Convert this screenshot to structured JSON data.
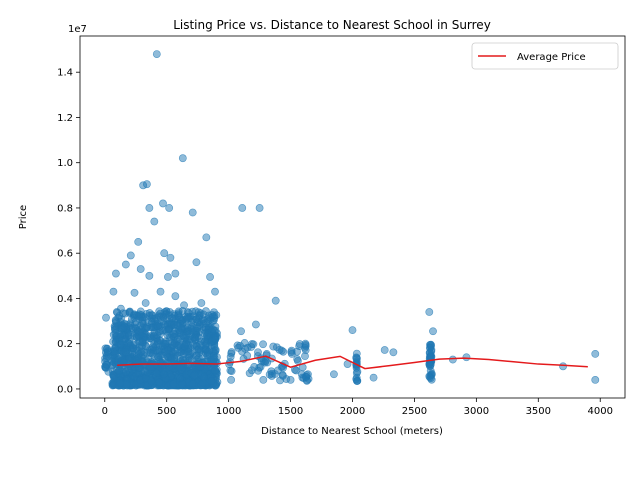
{
  "chart_data": {
    "type": "scatter",
    "title": "Listing Price vs. Distance to Nearest School in Surrey",
    "xlabel": "Distance to Nearest School (meters)",
    "ylabel": "Price",
    "y_offset_label": "1e7",
    "xlim": [
      -200,
      4200
    ],
    "ylim": [
      -400000,
      15600000
    ],
    "x_ticks": [
      0,
      500,
      1000,
      1500,
      2000,
      2500,
      3000,
      3500,
      4000
    ],
    "y_ticks": [
      0,
      2000000,
      4000000,
      6000000,
      8000000,
      10000000,
      12000000,
      14000000
    ],
    "x_tick_labels": [
      "0",
      "500",
      "1000",
      "1500",
      "2000",
      "2500",
      "3000",
      "3500",
      "4000"
    ],
    "y_tick_labels": [
      "0.0",
      "0.2",
      "0.4",
      "0.6",
      "0.8",
      "1.0",
      "1.2",
      "1.4"
    ],
    "legend": {
      "position": "upper right",
      "entries": [
        "Average Price"
      ]
    },
    "colors": {
      "scatter": "#1f77b4",
      "average_line": "#e41a1c"
    },
    "series": [
      {
        "type": "scatter",
        "points": [
          [
            420,
            14800000
          ],
          [
            630,
            10200000
          ],
          [
            310,
            9000000
          ],
          [
            340,
            9050000
          ],
          [
            470,
            8200000
          ],
          [
            360,
            8000000
          ],
          [
            520,
            8000000
          ],
          [
            1110,
            8000000
          ],
          [
            1250,
            8000000
          ],
          [
            710,
            7800000
          ],
          [
            400,
            7400000
          ],
          [
            820,
            6700000
          ],
          [
            270,
            6500000
          ],
          [
            480,
            6000000
          ],
          [
            210,
            5900000
          ],
          [
            530,
            5800000
          ],
          [
            740,
            5600000
          ],
          [
            170,
            5500000
          ],
          [
            290,
            5300000
          ],
          [
            90,
            5100000
          ],
          [
            570,
            5100000
          ],
          [
            360,
            5000000
          ],
          [
            510,
            4950000
          ],
          [
            850,
            4950000
          ],
          [
            70,
            4300000
          ],
          [
            240,
            4250000
          ],
          [
            450,
            4300000
          ],
          [
            890,
            4300000
          ],
          [
            570,
            4100000
          ],
          [
            1380,
            3900000
          ],
          [
            640,
            3700000
          ],
          [
            780,
            3800000
          ],
          [
            330,
            3800000
          ],
          [
            130,
            3550000
          ],
          [
            2620,
            3400000
          ],
          [
            10,
            3150000
          ],
          [
            200,
            3400000
          ],
          [
            1220,
            2850000
          ],
          [
            2000,
            2600000
          ],
          [
            2650,
            2550000
          ],
          [
            1100,
            2550000
          ],
          [
            1620,
            2000000
          ],
          [
            2260,
            1720000
          ],
          [
            2330,
            1620000
          ],
          [
            2920,
            1400000
          ],
          [
            2810,
            1300000
          ],
          [
            3700,
            1000000
          ],
          [
            3960,
            1550000
          ],
          [
            3960,
            400000
          ],
          [
            1850,
            650000
          ],
          [
            1960,
            1100000
          ],
          [
            2170,
            500000
          ],
          [
            1500,
            400000
          ],
          [
            1280,
            400000
          ],
          [
            1590,
            650000
          ],
          [
            1640,
            650000
          ],
          [
            1020,
            400000
          ]
        ]
      },
      {
        "name": "Average Price",
        "type": "line",
        "x": [
          100,
          300,
          500,
          700,
          900,
          1100,
          1300,
          1500,
          1700,
          1900,
          2100,
          2300,
          2500,
          2700,
          2900,
          3100,
          3300,
          3500,
          3700,
          3900
        ],
        "y": [
          1050000,
          1100000,
          1100000,
          1130000,
          1100000,
          1220000,
          1450000,
          960000,
          1270000,
          1440000,
          900000,
          1030000,
          1170000,
          1320000,
          1360000,
          1300000,
          1200000,
          1100000,
          1050000,
          980000
        ]
      }
    ]
  }
}
